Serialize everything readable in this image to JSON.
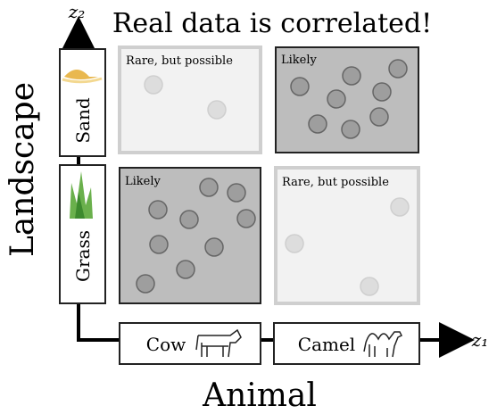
{
  "title": "Real data is correlated!",
  "y_axis": {
    "label": "Landscape",
    "symbol": "z₂",
    "categories": [
      "Sand",
      "Grass"
    ]
  },
  "x_axis": {
    "label": "Animal",
    "symbol": "z₁",
    "categories": [
      "Cow",
      "Camel"
    ]
  },
  "cells": [
    {
      "row": "Sand",
      "column": "Cow",
      "label": "Rare,  but possible"
    },
    {
      "row": "Sand",
      "column": "Camel",
      "label": "Likely"
    },
    {
      "row": "Grass",
      "column": "Cow",
      "label": "Likely"
    },
    {
      "row": "Grass",
      "column": "Camel",
      "label": "Rare,  but possible"
    }
  ]
}
